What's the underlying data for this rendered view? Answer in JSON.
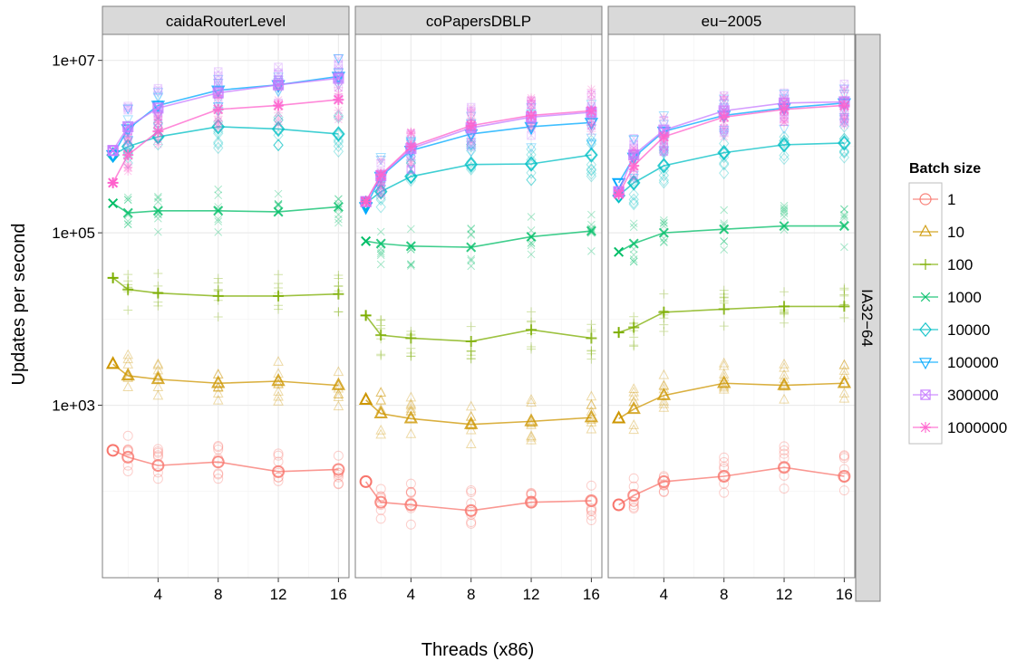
{
  "chart_data": {
    "type": "line",
    "ylabel": "Updates per second",
    "xlabel": "Threads (x86)",
    "y_scale": "log10",
    "ylim": [
      10,
      20000000
    ],
    "xlim": [
      0.3,
      16.7
    ],
    "x_ticks": [
      4,
      8,
      12,
      16
    ],
    "x_tick_labels": [
      "4",
      "8",
      "12",
      "16"
    ],
    "y_ticks": [
      1000,
      100000,
      10000000
    ],
    "y_tick_labels": [
      "1e+03",
      "1e+05",
      "1e+07"
    ],
    "row_strip": "IA32−64",
    "legend": {
      "title": "Batch size",
      "position": "right",
      "labels": [
        "1",
        "10",
        "100",
        "1000",
        "10000",
        "100000",
        "300000",
        "1000000"
      ]
    },
    "grid": true,
    "x": [
      1,
      2,
      4,
      8,
      12,
      16
    ],
    "colors": [
      "#F8766D",
      "#CD9600",
      "#7CAE00",
      "#00BE67",
      "#00BFC4",
      "#00A9FF",
      "#C77CFF",
      "#FF61CC"
    ],
    "markers": [
      "circle",
      "triangle",
      "plus",
      "cross",
      "diamond",
      "triangle-down",
      "square-cross",
      "asterisk"
    ],
    "panels": [
      {
        "title": "caidaRouterLevel",
        "series": [
          {
            "name": "1",
            "values": [
              300,
              250,
              200,
              220,
              170,
              180
            ]
          },
          {
            "name": "10",
            "values": [
              3000,
              2200,
              2000,
              1800,
              1900,
              1700
            ]
          },
          {
            "name": "100",
            "values": [
              30000,
              22000,
              20000,
              18500,
              18500,
              19500
            ]
          },
          {
            "name": "1000",
            "values": [
              220000,
              170000,
              180000,
              180000,
              175000,
              200000
            ]
          },
          {
            "name": "10000",
            "values": [
              800000,
              1000000,
              1300000,
              1700000,
              1600000,
              1400000
            ]
          },
          {
            "name": "100000",
            "values": [
              800000,
              1600000,
              3000000,
              4500000,
              5200000,
              6500000
            ]
          },
          {
            "name": "300000",
            "values": [
              900000,
              1700000,
              2800000,
              4200000,
              5200000,
              6200000
            ]
          },
          {
            "name": "1000000",
            "values": [
              380000,
              800000,
              1500000,
              2700000,
              3000000,
              3500000
            ]
          }
        ]
      },
      {
        "title": "coPapersDBLP",
        "series": [
          {
            "name": "1",
            "values": [
              130,
              75,
              70,
              60,
              75,
              78
            ]
          },
          {
            "name": "10",
            "values": [
              1150,
              800,
              700,
              600,
              650,
              720
            ]
          },
          {
            "name": "100",
            "values": [
              11000,
              6500,
              6000,
              5500,
              7500,
              6000
            ]
          },
          {
            "name": "1000",
            "values": [
              80000,
              75000,
              70000,
              68000,
              90000,
              105000
            ]
          },
          {
            "name": "10000",
            "values": [
              220000,
              300000,
              450000,
              620000,
              630000,
              800000
            ]
          },
          {
            "name": "100000",
            "values": [
              200000,
              450000,
              900000,
              1400000,
              1700000,
              1900000
            ]
          },
          {
            "name": "300000",
            "values": [
              230000,
              460000,
              950000,
              1650000,
              2200000,
              2500000
            ]
          },
          {
            "name": "1000000",
            "values": [
              230000,
              470000,
              1000000,
              1750000,
              2300000,
              2600000
            ]
          }
        ]
      },
      {
        "title": "eu−2005",
        "series": [
          {
            "name": "1",
            "values": [
              70,
              90,
              130,
              150,
              190,
              150
            ]
          },
          {
            "name": "10",
            "values": [
              700,
              900,
              1300,
              1800,
              1700,
              1800
            ]
          },
          {
            "name": "100",
            "values": [
              7000,
              8000,
              12000,
              13000,
              14000,
              14000
            ]
          },
          {
            "name": "1000",
            "values": [
              60000,
              75000,
              100000,
              110000,
              120000,
              120000
            ]
          },
          {
            "name": "10000",
            "values": [
              270000,
              380000,
              600000,
              850000,
              1050000,
              1100000
            ]
          },
          {
            "name": "100000",
            "values": [
              380000,
              750000,
              1500000,
              2300000,
              2800000,
              3200000
            ]
          },
          {
            "name": "300000",
            "values": [
              300000,
              800000,
              1550000,
              2600000,
              3200000,
              3300000
            ]
          },
          {
            "name": "1000000",
            "values": [
              280000,
              600000,
              1300000,
              2200000,
              2700000,
              3000000
            ]
          }
        ]
      }
    ]
  }
}
